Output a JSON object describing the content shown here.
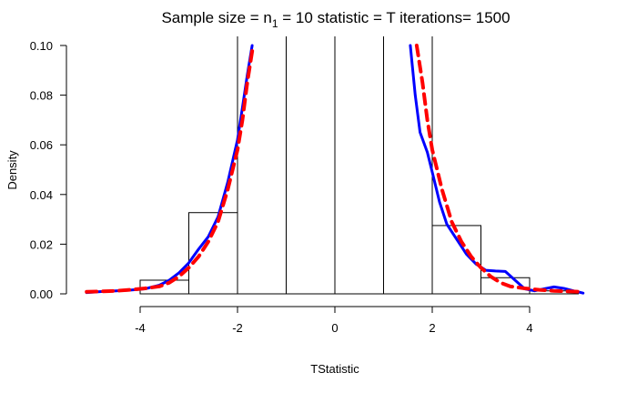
{
  "chart_data": {
    "type": "histogram",
    "title_parts": {
      "prefix": "Sample size = n",
      "subscript": "1",
      "suffix": " = 10 statistic = T iterations= 1500"
    },
    "xlabel": "TStatistic",
    "ylabel": "Density",
    "xlim": [
      -5.2,
      5.2
    ],
    "ylim": [
      0,
      0.1
    ],
    "x_ticks": [
      -4,
      -2,
      0,
      2,
      4
    ],
    "y_ticks": [
      0.0,
      0.02,
      0.04,
      0.06,
      0.08,
      0.1
    ],
    "y_tick_labels": [
      "0.00",
      "0.02",
      "0.04",
      "0.06",
      "0.08",
      "0.10"
    ],
    "histogram": {
      "bins": [
        {
          "x0": -4,
          "x1": -3,
          "density": 0.0055
        },
        {
          "x0": -3,
          "x1": -2,
          "density": 0.0327
        },
        {
          "x0": -2,
          "x1": -1,
          "density": 0.2
        },
        {
          "x0": -1,
          "x1": 0,
          "density": 0.2
        },
        {
          "x0": 0,
          "x1": 1,
          "density": 0.2
        },
        {
          "x0": 1,
          "x1": 2,
          "density": 0.2
        },
        {
          "x0": 2,
          "x1": 3,
          "density": 0.0275
        },
        {
          "x0": 3,
          "x1": 4,
          "density": 0.0065
        },
        {
          "x0": 4,
          "x1": 5,
          "density": 0.0012
        }
      ],
      "fill": "#ffffff",
      "stroke": "#000000"
    },
    "series": [
      {
        "style": "solid",
        "color": "#0000ff",
        "points": [
          [
            -5.1,
            0.0005
          ],
          [
            -4.8,
            0.0009
          ],
          [
            -4.5,
            0.0012
          ],
          [
            -4.2,
            0.0015
          ],
          [
            -3.9,
            0.002
          ],
          [
            -3.6,
            0.0035
          ],
          [
            -3.4,
            0.0055
          ],
          [
            -3.2,
            0.0085
          ],
          [
            -3.0,
            0.0125
          ],
          [
            -2.8,
            0.018
          ],
          [
            -2.6,
            0.023
          ],
          [
            -2.4,
            0.031
          ],
          [
            -2.2,
            0.045
          ],
          [
            -2.0,
            0.062
          ],
          [
            -1.9,
            0.075
          ],
          [
            -1.8,
            0.088
          ],
          [
            -1.7,
            0.1
          ]
        ],
        "points_right": [
          [
            1.55,
            0.1
          ],
          [
            1.65,
            0.08
          ],
          [
            1.75,
            0.065
          ],
          [
            1.9,
            0.057
          ],
          [
            2.0,
            0.049
          ],
          [
            2.15,
            0.037
          ],
          [
            2.3,
            0.028
          ],
          [
            2.5,
            0.022
          ],
          [
            2.7,
            0.016
          ],
          [
            2.9,
            0.012
          ],
          [
            3.1,
            0.0095
          ],
          [
            3.3,
            0.0092
          ],
          [
            3.5,
            0.009
          ],
          [
            3.7,
            0.0055
          ],
          [
            3.9,
            0.002
          ],
          [
            4.1,
            0.0012
          ],
          [
            4.3,
            0.002
          ],
          [
            4.5,
            0.0028
          ],
          [
            4.7,
            0.0022
          ],
          [
            4.9,
            0.0012
          ],
          [
            5.1,
            0.0003
          ]
        ]
      },
      {
        "style": "dashed",
        "color": "#ff0000",
        "points": [
          [
            -5.1,
            0.0008
          ],
          [
            -4.8,
            0.001
          ],
          [
            -4.5,
            0.0012
          ],
          [
            -4.2,
            0.0016
          ],
          [
            -3.9,
            0.0022
          ],
          [
            -3.6,
            0.003
          ],
          [
            -3.4,
            0.0045
          ],
          [
            -3.2,
            0.007
          ],
          [
            -3.0,
            0.0105
          ],
          [
            -2.8,
            0.015
          ],
          [
            -2.6,
            0.021
          ],
          [
            -2.4,
            0.029
          ],
          [
            -2.2,
            0.042
          ],
          [
            -2.0,
            0.058
          ],
          [
            -1.9,
            0.07
          ],
          [
            -1.8,
            0.085
          ],
          [
            -1.68,
            0.1
          ]
        ],
        "points_right": [
          [
            1.68,
            0.1
          ],
          [
            1.8,
            0.085
          ],
          [
            1.9,
            0.07
          ],
          [
            2.0,
            0.058
          ],
          [
            2.2,
            0.042
          ],
          [
            2.4,
            0.029
          ],
          [
            2.6,
            0.021
          ],
          [
            2.8,
            0.015
          ],
          [
            3.0,
            0.0105
          ],
          [
            3.2,
            0.007
          ],
          [
            3.4,
            0.0045
          ],
          [
            3.6,
            0.003
          ],
          [
            3.9,
            0.0022
          ],
          [
            4.2,
            0.0016
          ],
          [
            4.5,
            0.0012
          ],
          [
            4.8,
            0.001
          ],
          [
            5.1,
            0.0008
          ]
        ]
      }
    ]
  }
}
